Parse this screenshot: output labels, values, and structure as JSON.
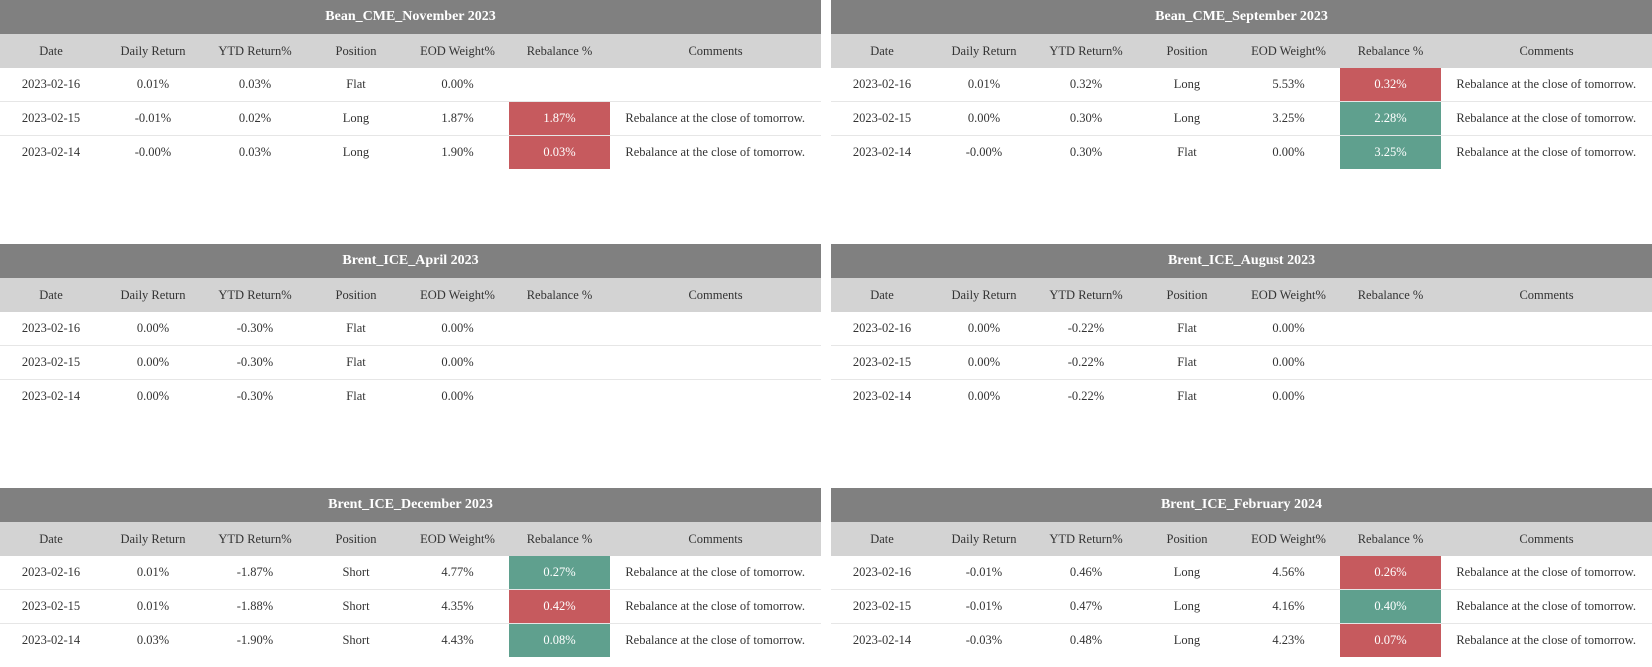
{
  "colors": {
    "title_bar": "#808080",
    "header_bar": "#d3d3d3",
    "rebalance_green": "#5fa08e",
    "rebalance_red": "#c65a5e"
  },
  "columns": [
    "Date",
    "Daily Return",
    "YTD Return%",
    "Position",
    "EOD Weight%",
    "Rebalance %",
    "Comments"
  ],
  "panels": [
    {
      "title": "Bean_CME_November 2023",
      "rows": [
        {
          "date": "2023-02-16",
          "daily": "0.01%",
          "ytd": "0.03%",
          "position": "Flat",
          "weight": "0.00%",
          "rebalance": "",
          "rebalance_color": "none",
          "comment": ""
        },
        {
          "date": "2023-02-15",
          "daily": "-0.01%",
          "ytd": "0.02%",
          "position": "Long",
          "weight": "1.87%",
          "rebalance": "1.87%",
          "rebalance_color": "red",
          "comment": "Rebalance at the close of tomorrow."
        },
        {
          "date": "2023-02-14",
          "daily": "-0.00%",
          "ytd": "0.03%",
          "position": "Long",
          "weight": "1.90%",
          "rebalance": "0.03%",
          "rebalance_color": "red",
          "comment": "Rebalance at the close of tomorrow."
        }
      ]
    },
    {
      "title": "Bean_CME_September 2023",
      "rows": [
        {
          "date": "2023-02-16",
          "daily": "0.01%",
          "ytd": "0.32%",
          "position": "Long",
          "weight": "5.53%",
          "rebalance": "0.32%",
          "rebalance_color": "red",
          "comment": "Rebalance at the close of tomorrow."
        },
        {
          "date": "2023-02-15",
          "daily": "0.00%",
          "ytd": "0.30%",
          "position": "Long",
          "weight": "3.25%",
          "rebalance": "2.28%",
          "rebalance_color": "green",
          "comment": "Rebalance at the close of tomorrow."
        },
        {
          "date": "2023-02-14",
          "daily": "-0.00%",
          "ytd": "0.30%",
          "position": "Flat",
          "weight": "0.00%",
          "rebalance": "3.25%",
          "rebalance_color": "green",
          "comment": "Rebalance at the close of tomorrow."
        }
      ]
    },
    {
      "title": "Brent_ICE_April 2023",
      "rows": [
        {
          "date": "2023-02-16",
          "daily": "0.00%",
          "ytd": "-0.30%",
          "position": "Flat",
          "weight": "0.00%",
          "rebalance": "",
          "rebalance_color": "none",
          "comment": ""
        },
        {
          "date": "2023-02-15",
          "daily": "0.00%",
          "ytd": "-0.30%",
          "position": "Flat",
          "weight": "0.00%",
          "rebalance": "",
          "rebalance_color": "none",
          "comment": ""
        },
        {
          "date": "2023-02-14",
          "daily": "0.00%",
          "ytd": "-0.30%",
          "position": "Flat",
          "weight": "0.00%",
          "rebalance": "",
          "rebalance_color": "none",
          "comment": ""
        }
      ]
    },
    {
      "title": "Brent_ICE_August 2023",
      "rows": [
        {
          "date": "2023-02-16",
          "daily": "0.00%",
          "ytd": "-0.22%",
          "position": "Flat",
          "weight": "0.00%",
          "rebalance": "",
          "rebalance_color": "none",
          "comment": ""
        },
        {
          "date": "2023-02-15",
          "daily": "0.00%",
          "ytd": "-0.22%",
          "position": "Flat",
          "weight": "0.00%",
          "rebalance": "",
          "rebalance_color": "none",
          "comment": ""
        },
        {
          "date": "2023-02-14",
          "daily": "0.00%",
          "ytd": "-0.22%",
          "position": "Flat",
          "weight": "0.00%",
          "rebalance": "",
          "rebalance_color": "none",
          "comment": ""
        }
      ]
    },
    {
      "title": "Brent_ICE_December 2023",
      "rows": [
        {
          "date": "2023-02-16",
          "daily": "0.01%",
          "ytd": "-1.87%",
          "position": "Short",
          "weight": "4.77%",
          "rebalance": "0.27%",
          "rebalance_color": "green",
          "comment": "Rebalance at the close of tomorrow."
        },
        {
          "date": "2023-02-15",
          "daily": "0.01%",
          "ytd": "-1.88%",
          "position": "Short",
          "weight": "4.35%",
          "rebalance": "0.42%",
          "rebalance_color": "red",
          "comment": "Rebalance at the close of tomorrow."
        },
        {
          "date": "2023-02-14",
          "daily": "0.03%",
          "ytd": "-1.90%",
          "position": "Short",
          "weight": "4.43%",
          "rebalance": "0.08%",
          "rebalance_color": "green",
          "comment": "Rebalance at the close of tomorrow."
        }
      ]
    },
    {
      "title": "Brent_ICE_February 2024",
      "rows": [
        {
          "date": "2023-02-16",
          "daily": "-0.01%",
          "ytd": "0.46%",
          "position": "Long",
          "weight": "4.56%",
          "rebalance": "0.26%",
          "rebalance_color": "red",
          "comment": "Rebalance at the close of tomorrow."
        },
        {
          "date": "2023-02-15",
          "daily": "-0.01%",
          "ytd": "0.47%",
          "position": "Long",
          "weight": "4.16%",
          "rebalance": "0.40%",
          "rebalance_color": "green",
          "comment": "Rebalance at the close of tomorrow."
        },
        {
          "date": "2023-02-14",
          "daily": "-0.03%",
          "ytd": "0.48%",
          "position": "Long",
          "weight": "4.23%",
          "rebalance": "0.07%",
          "rebalance_color": "red",
          "comment": "Rebalance at the close of tomorrow."
        }
      ]
    }
  ]
}
